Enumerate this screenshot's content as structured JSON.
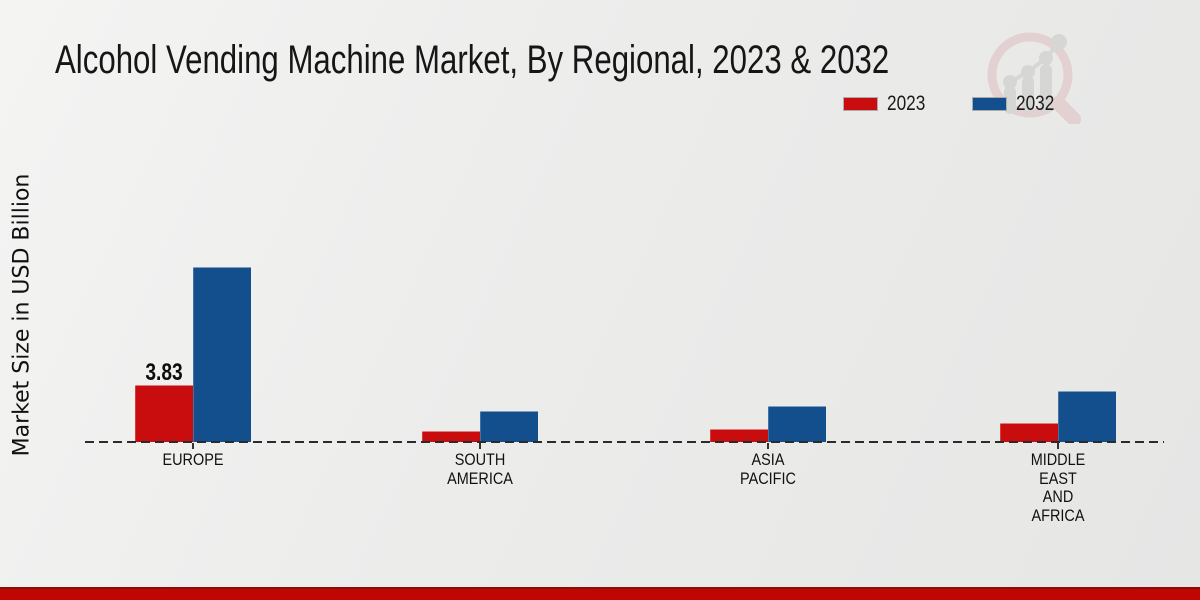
{
  "header": {
    "title": "Alcohol Vending Machine Market, By Regional, 2023 & 2032"
  },
  "watermark": {
    "icon": "magnifier-bar-chart-logo",
    "ring_color": "#dfbcc0",
    "bar_color": "#c7c7c7"
  },
  "footer": {
    "bar_color": "#bf0603"
  },
  "chart_data": {
    "type": "bar",
    "title": "Alcohol Vending Machine Market, By Regional, 2023 & 2032",
    "xlabel": "",
    "ylabel": "Market Size in USD Billion",
    "categories": [
      "EUROPE",
      "SOUTH AMERICA",
      "ASIA PACIFIC",
      "MIDDLE EAST AND AFRICA"
    ],
    "category_display": [
      "EUROPE",
      "SOUTH\nAMERICA",
      "ASIA\nPACIFIC",
      "MIDDLE\nEAST\nAND\nAFRICA"
    ],
    "series": [
      {
        "name": "2023",
        "color": "#c90d0e",
        "values": [
          3.83,
          0.72,
          0.85,
          1.24
        ]
      },
      {
        "name": "2032",
        "color": "#134f8c",
        "values": [
          11.7,
          2.1,
          2.4,
          3.4
        ]
      }
    ],
    "data_labels": [
      {
        "series_index": 0,
        "category_index": 0,
        "text": "3.83"
      }
    ],
    "grid": false,
    "baseline_style": "dashed",
    "legend_position": "top-right",
    "ylim": [
      0,
      13
    ]
  }
}
